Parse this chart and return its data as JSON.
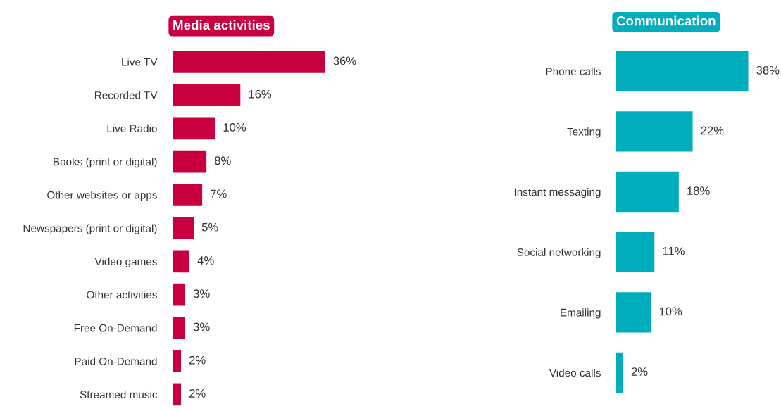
{
  "chart_data": [
    {
      "type": "bar",
      "orientation": "horizontal",
      "title": "Media activities",
      "color": "#c8003f",
      "tick_labels": "y",
      "categories": [
        "Live TV",
        "Recorded TV",
        "Live Radio",
        "Books (print or digital)",
        "Other websites or apps",
        "Newspapers (print or digital)",
        "Video games",
        "Other activities",
        "Free On-Demand",
        "Paid On-Demand",
        "Streamed music"
      ],
      "values": [
        36,
        16,
        10,
        8,
        7,
        5,
        4,
        3,
        3,
        2,
        2
      ],
      "value_labels": [
        "36%",
        "16%",
        "10%",
        "8%",
        "7%",
        "5%",
        "4%",
        "3%",
        "3%",
        "2%",
        "2%"
      ]
    },
    {
      "type": "bar",
      "orientation": "horizontal",
      "title": "Communication",
      "color": "#00adbd",
      "tick_labels": "y",
      "categories": [
        "Phone calls",
        "Texting",
        "Instant messaging",
        "Social networking",
        "Emailing",
        "Video calls"
      ],
      "values": [
        38,
        22,
        18,
        11,
        10,
        2
      ],
      "value_labels": [
        "38%",
        "22%",
        "18%",
        "11%",
        "10%",
        "2%"
      ]
    }
  ]
}
